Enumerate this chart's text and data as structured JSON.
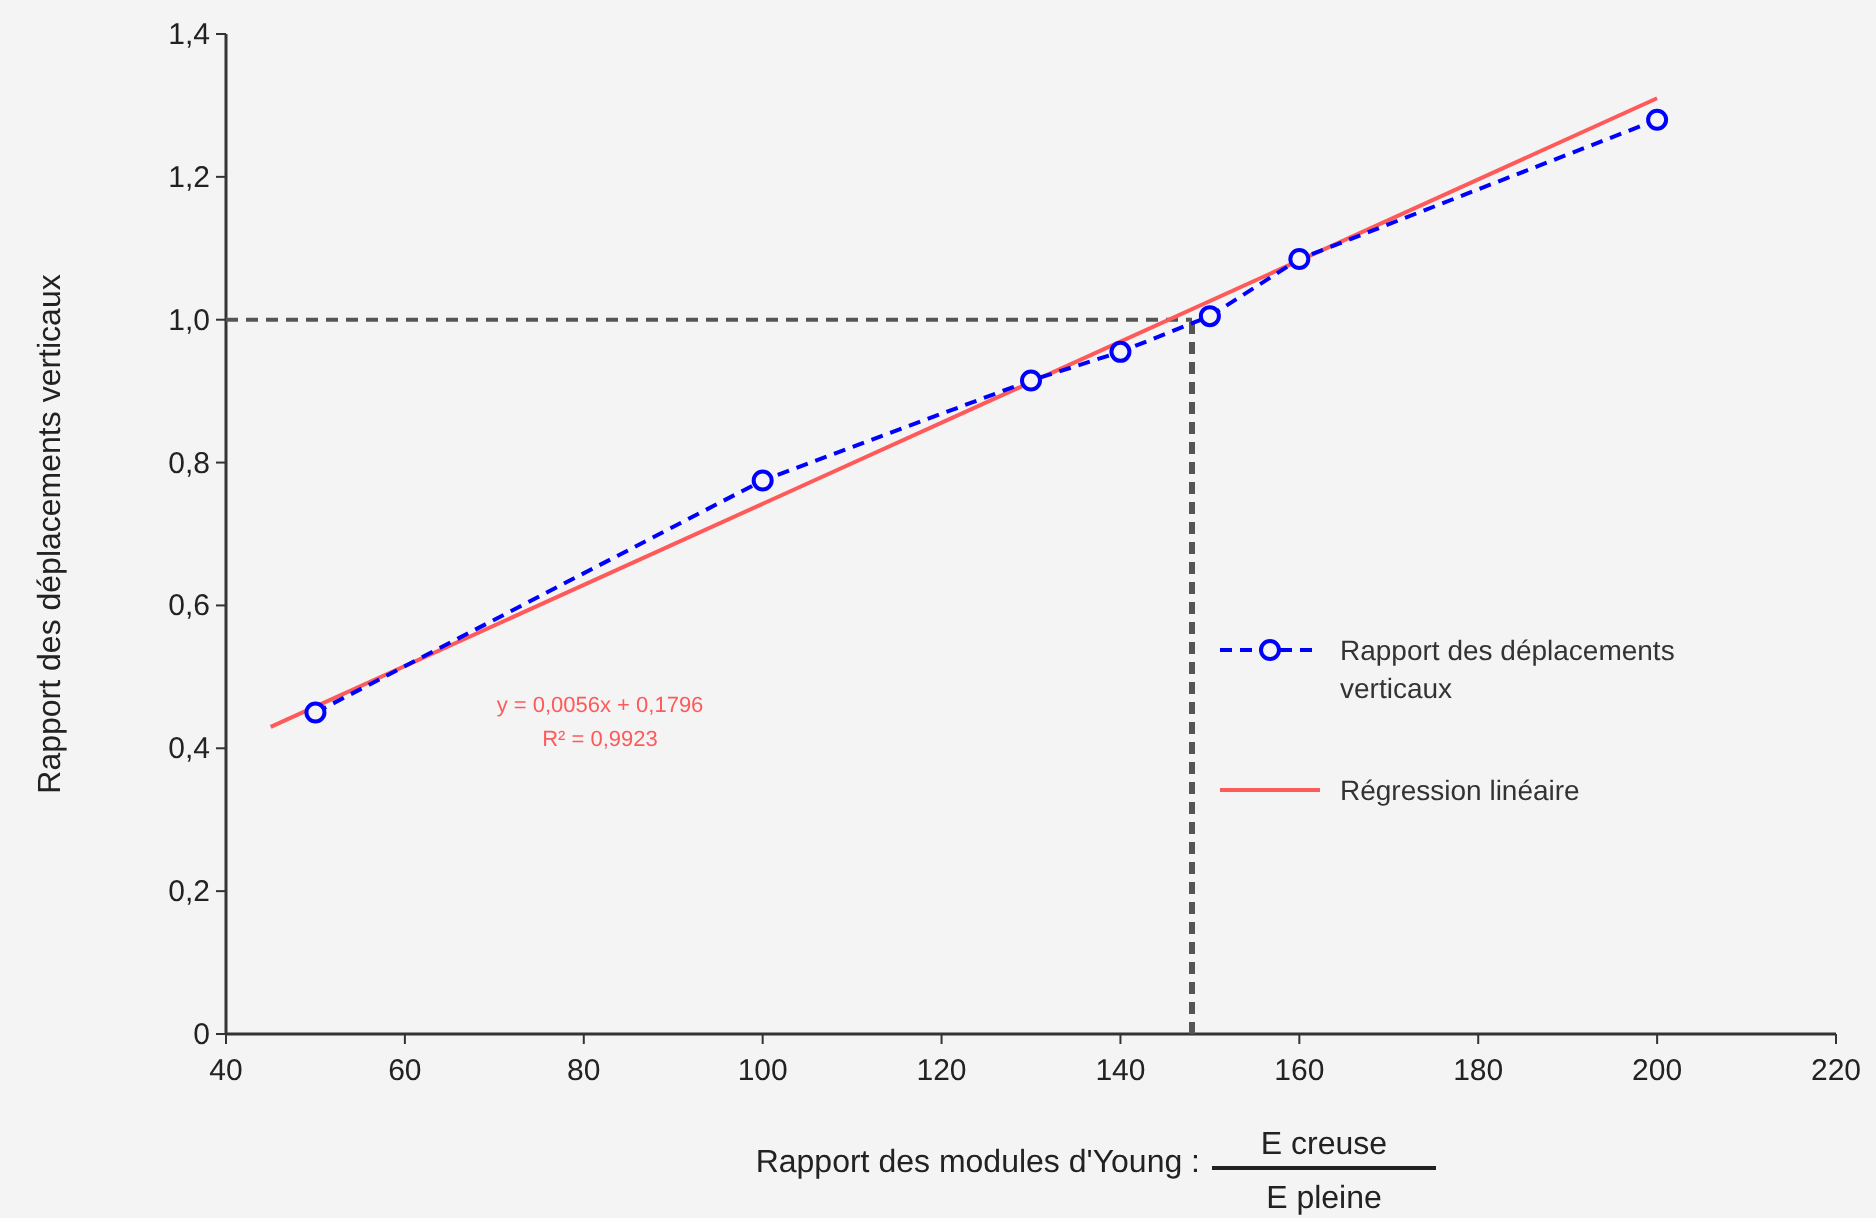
{
  "chart_data": {
    "type": "line",
    "xlabel": "Rapport des modules d'Young :",
    "ylabel": "Rapport des déplacements verticaux",
    "annotations": [
      "E creuse",
      "E pleine",
      "y = 0,0056x + 0,1796",
      "R² = 0,9923"
    ],
    "xlim": [
      40,
      220
    ],
    "xticks": [
      40,
      60,
      80,
      100,
      120,
      140,
      160,
      180,
      200,
      220
    ],
    "ylim": [
      0,
      1.4
    ],
    "yticks": [
      {
        "value": 0,
        "label": "0"
      },
      {
        "value": 0.2,
        "label": "0,2"
      },
      {
        "value": 0.4,
        "label": "0,4"
      },
      {
        "value": 0.6,
        "label": "0,6"
      },
      {
        "value": 0.8,
        "label": "0,8"
      },
      {
        "value": 1,
        "label": "1,0"
      },
      {
        "value": 1.2,
        "label": "1,2"
      },
      {
        "value": 1.4,
        "label": "1,4"
      }
    ],
    "grid": false,
    "legend": "right",
    "ref_lines": [
      {
        "axis": "y",
        "value": 1,
        "color": "#555555",
        "line_style": "dashed"
      },
      {
        "axis": "x",
        "value": 148,
        "color": "#555555",
        "line_style": "dashed"
      }
    ],
    "series": [
      {
        "name": "Rapport des déplacements verticaux",
        "color": "#0000ff",
        "x": [
          50,
          100,
          130,
          140,
          150,
          160,
          200
        ],
        "values": [
          0.45,
          0.775,
          0.915,
          0.955,
          1.005,
          1.085,
          1.28
        ],
        "marker": "circle",
        "line_style": "dashed"
      },
      {
        "name": "Régression linéaire",
        "color": "#ff5a5a",
        "x": [
          45,
          200
        ],
        "values": [
          0.43,
          1.31
        ],
        "marker": "none",
        "line_style": "solid"
      }
    ]
  }
}
